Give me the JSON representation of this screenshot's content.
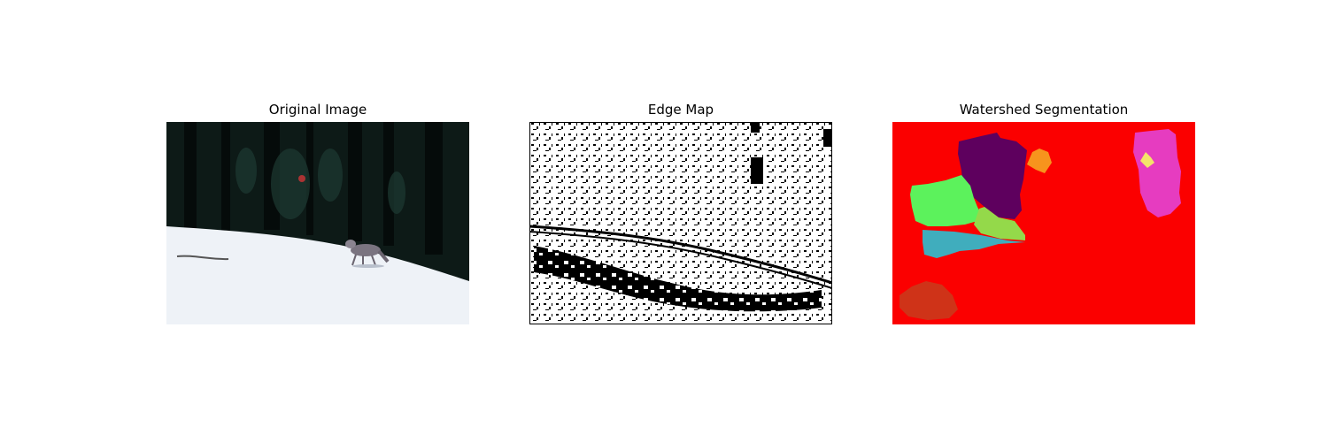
{
  "panels": [
    {
      "title": "Original Image"
    },
    {
      "title": "Edge Map"
    },
    {
      "title": "Watershed Segmentation"
    }
  ],
  "colors": {
    "forest": "#0d1a17",
    "snow": "#eef2f7",
    "edge_black": "#000000",
    "edge_white": "#ffffff",
    "seg_background": "#fb0000",
    "seg_purple": "#5e005e",
    "seg_green": "#5cf25c",
    "seg_lime": "#94d94a",
    "seg_teal": "#40adbd",
    "seg_orange": "#f7941d",
    "seg_magenta": "#e63cc0",
    "seg_yellow": "#f4e36a",
    "seg_brick": "#cf3318"
  }
}
